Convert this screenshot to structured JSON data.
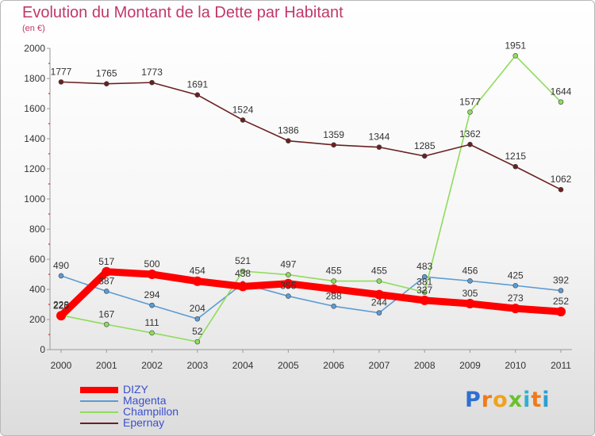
{
  "header": {
    "title": "Evolution du Montant de la Dette par Habitant",
    "subtitle": "(en €)"
  },
  "brand": {
    "letters": [
      "P",
      "r",
      "o",
      "x",
      "i",
      "t",
      "i"
    ],
    "colors": [
      "#2f6fd0",
      "#f07a1a",
      "#f0a21a",
      "#6ac030",
      "#2fb0d0",
      "#f07a1a",
      "#2f9fd0"
    ]
  },
  "chart_data": {
    "type": "line",
    "title": "Evolution du Montant de la Dette par Habitant",
    "subtitle": "(en €)",
    "xlabel": "",
    "ylabel": "",
    "ylim": [
      0,
      2000
    ],
    "yticks": [
      0,
      200,
      400,
      600,
      800,
      1000,
      1200,
      1400,
      1600,
      1800,
      2000
    ],
    "categories": [
      "2000",
      "2001",
      "2002",
      "2003",
      "2004",
      "2005",
      "2006",
      "2007",
      "2008",
      "2009",
      "2010",
      "2011"
    ],
    "grid": false,
    "legend": "bottom-left",
    "series": [
      {
        "name": "DIZY",
        "color": "#ff0000",
        "values": [
          225,
          517,
          500,
          454,
          419,
          438,
          402,
          365,
          327,
          305,
          273,
          252
        ],
        "labels": [
          "225",
          "517",
          "500",
          "454",
          "",
          "",
          "",
          "",
          "327",
          "305",
          "273",
          "252"
        ]
      },
      {
        "name": "Magenta",
        "color": "#5b9bd5",
        "values": [
          490,
          387,
          294,
          204,
          438,
          355,
          288,
          244,
          483,
          456,
          425,
          392
        ],
        "labels": [
          "490",
          "387",
          "294",
          "204",
          "438",
          "355",
          "288",
          "244",
          "483",
          "456",
          "425",
          "392"
        ]
      },
      {
        "name": "Champillon",
        "color": "#8fdc5a",
        "values": [
          228,
          167,
          111,
          52,
          521,
          497,
          455,
          455,
          381,
          1577,
          1951,
          1644
        ],
        "labels": [
          "228",
          "167",
          "111",
          "52",
          "521",
          "497",
          "455",
          "455",
          "381",
          "1577",
          "1951",
          "1644"
        ]
      },
      {
        "name": "Epernay",
        "color": "#6b2020",
        "values": [
          1777,
          1765,
          1773,
          1691,
          1524,
          1386,
          1359,
          1344,
          1285,
          1362,
          1215,
          1062
        ],
        "labels": [
          "1777",
          "1765",
          "1773",
          "1691",
          "1524",
          "1386",
          "1359",
          "1344",
          "1285",
          "1362",
          "1215",
          "1062"
        ]
      }
    ]
  }
}
